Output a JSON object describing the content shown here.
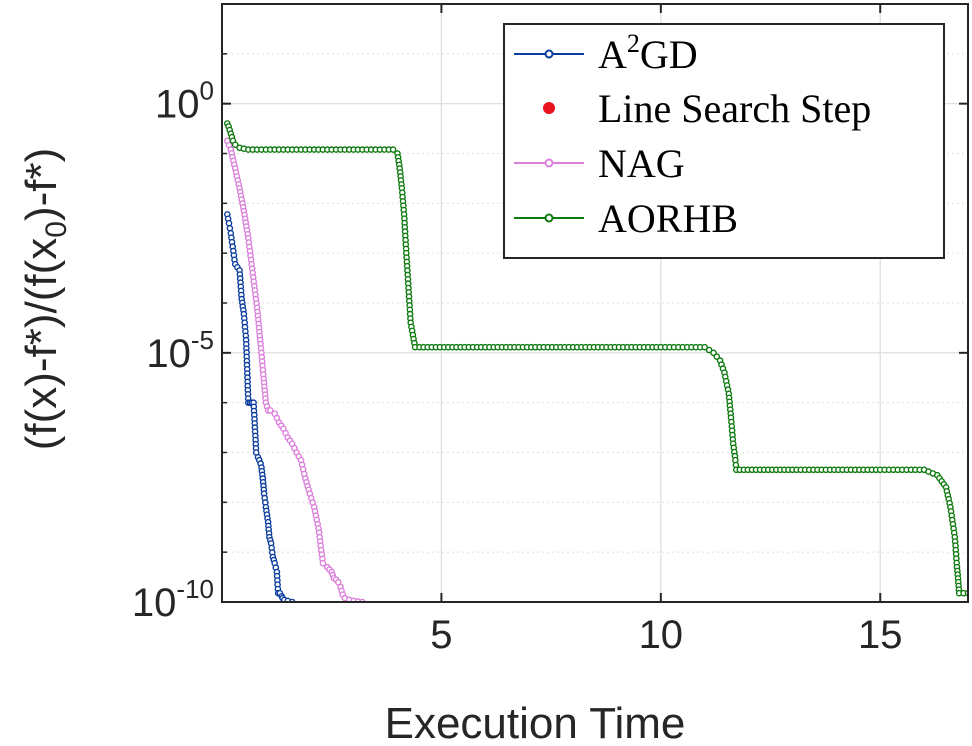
{
  "chart_data": {
    "type": "line",
    "title": "",
    "xlabel": "Execution Time",
    "ylabel_parts": [
      "(f(x)-f*)/(f(x",
      "0",
      ")-f*)"
    ],
    "xlim": [
      0,
      17
    ],
    "ylim": [
      1e-10,
      100
    ],
    "yscale": "log",
    "grid": true,
    "xticks": [
      5,
      10,
      15
    ],
    "xtick_labels": [
      "5",
      "10",
      "15"
    ],
    "yticks": [
      {
        "value": 1,
        "base": "10",
        "exp": "0"
      },
      {
        "value": 1e-05,
        "base": "10",
        "exp": "-5"
      },
      {
        "value": 1e-10,
        "base": "10",
        "exp": "-10"
      }
    ],
    "legend_position": "top-right",
    "series": [
      {
        "name": "A",
        "name_sup": "2",
        "name_rest": "GD",
        "color": "#0b3c9e",
        "marker": "open-circle",
        "x": [
          0.12,
          0.16,
          0.2,
          0.3,
          0.4,
          0.45,
          0.5,
          0.55,
          0.6,
          0.64,
          0.68,
          0.72,
          0.78,
          0.82,
          0.85,
          0.88,
          0.9,
          0.93,
          0.96,
          1.0,
          1.05,
          1.08,
          1.12,
          1.16,
          1.2,
          1.25,
          1.28,
          1.32,
          1.36,
          1.38,
          1.42,
          1.5,
          1.6
        ],
        "y": [
          0.006,
          0.004,
          0.0025,
          0.0006,
          0.00045,
          0.00012,
          6e-05,
          1.8e-05,
          1e-06,
          1e-06,
          1e-06,
          1e-06,
          1e-07,
          8e-08,
          7e-08,
          6e-08,
          5e-08,
          3e-08,
          1.5e-08,
          8e-09,
          4e-09,
          2e-09,
          1.5e-09,
          8e-10,
          6e-10,
          4e-10,
          1.5e-10,
          1.5e-10,
          1.3e-10,
          1.2e-10,
          1.1e-10,
          1.05e-10,
          1e-10
        ]
      },
      {
        "name": "Line Search Step",
        "color": "#e8131c",
        "marker": "filled-dot",
        "x": [],
        "y": []
      },
      {
        "name": "NAG",
        "color": "#dc7fdc",
        "marker": "open-circle",
        "x": [
          0.12,
          0.2,
          0.3,
          0.4,
          0.5,
          0.6,
          0.7,
          0.8,
          0.88,
          0.95,
          1.0,
          1.05,
          1.1,
          1.2,
          1.3,
          1.4,
          1.5,
          1.6,
          1.7,
          1.8,
          1.9,
          2.0,
          2.1,
          2.2,
          2.3,
          2.4,
          2.5,
          2.55,
          2.6,
          2.65,
          2.7,
          2.75,
          2.8,
          2.9,
          3.0,
          3.1,
          3.2
        ],
        "y": [
          0.18,
          0.12,
          0.05,
          0.02,
          0.007,
          0.002,
          0.0004,
          8e-05,
          1.5e-05,
          3e-06,
          1e-06,
          7e-07,
          7e-07,
          6e-07,
          4e-07,
          3e-07,
          2e-07,
          1.5e-07,
          1e-07,
          7e-08,
          3e-08,
          1.5e-08,
          8e-09,
          3e-09,
          6e-10,
          5e-10,
          4e-10,
          3e-10,
          2.8e-10,
          2.5e-10,
          2e-10,
          1.4e-10,
          1.2e-10,
          1.1e-10,
          1.05e-10,
          1.02e-10,
          1e-10
        ]
      },
      {
        "name": "AORHB",
        "color": "#0d7a0d",
        "marker": "open-circle",
        "x": [
          0.12,
          0.15,
          0.2,
          0.25,
          0.3,
          0.4,
          0.6,
          1.0,
          2.0,
          3.0,
          3.7,
          3.9,
          4.0,
          4.05,
          4.1,
          4.15,
          4.2,
          4.25,
          4.3,
          4.4,
          4.5,
          6.0,
          8.0,
          10.0,
          11.0,
          11.2,
          11.35,
          11.45,
          11.55,
          11.6,
          11.65,
          11.7,
          11.72,
          11.8,
          13.0,
          15.0,
          16.0,
          16.3,
          16.5,
          16.6,
          16.7,
          16.75,
          16.78,
          16.8,
          17.0
        ],
        "y": [
          0.4,
          0.35,
          0.25,
          0.18,
          0.15,
          0.13,
          0.12,
          0.12,
          0.12,
          0.12,
          0.12,
          0.12,
          0.1,
          0.05,
          0.02,
          0.006,
          0.001,
          0.0002,
          4e-05,
          1.3e-05,
          1.3e-05,
          1.3e-05,
          1.3e-05,
          1.3e-05,
          1.3e-05,
          1e-05,
          7e-06,
          4e-06,
          1.5e-06,
          5e-07,
          1.5e-07,
          7e-08,
          4.5e-08,
          4.5e-08,
          4.5e-08,
          4.5e-08,
          4.5e-08,
          3.5e-08,
          2e-08,
          8e-09,
          2e-09,
          5e-10,
          2.5e-10,
          1.5e-10,
          1.5e-10
        ]
      }
    ]
  }
}
